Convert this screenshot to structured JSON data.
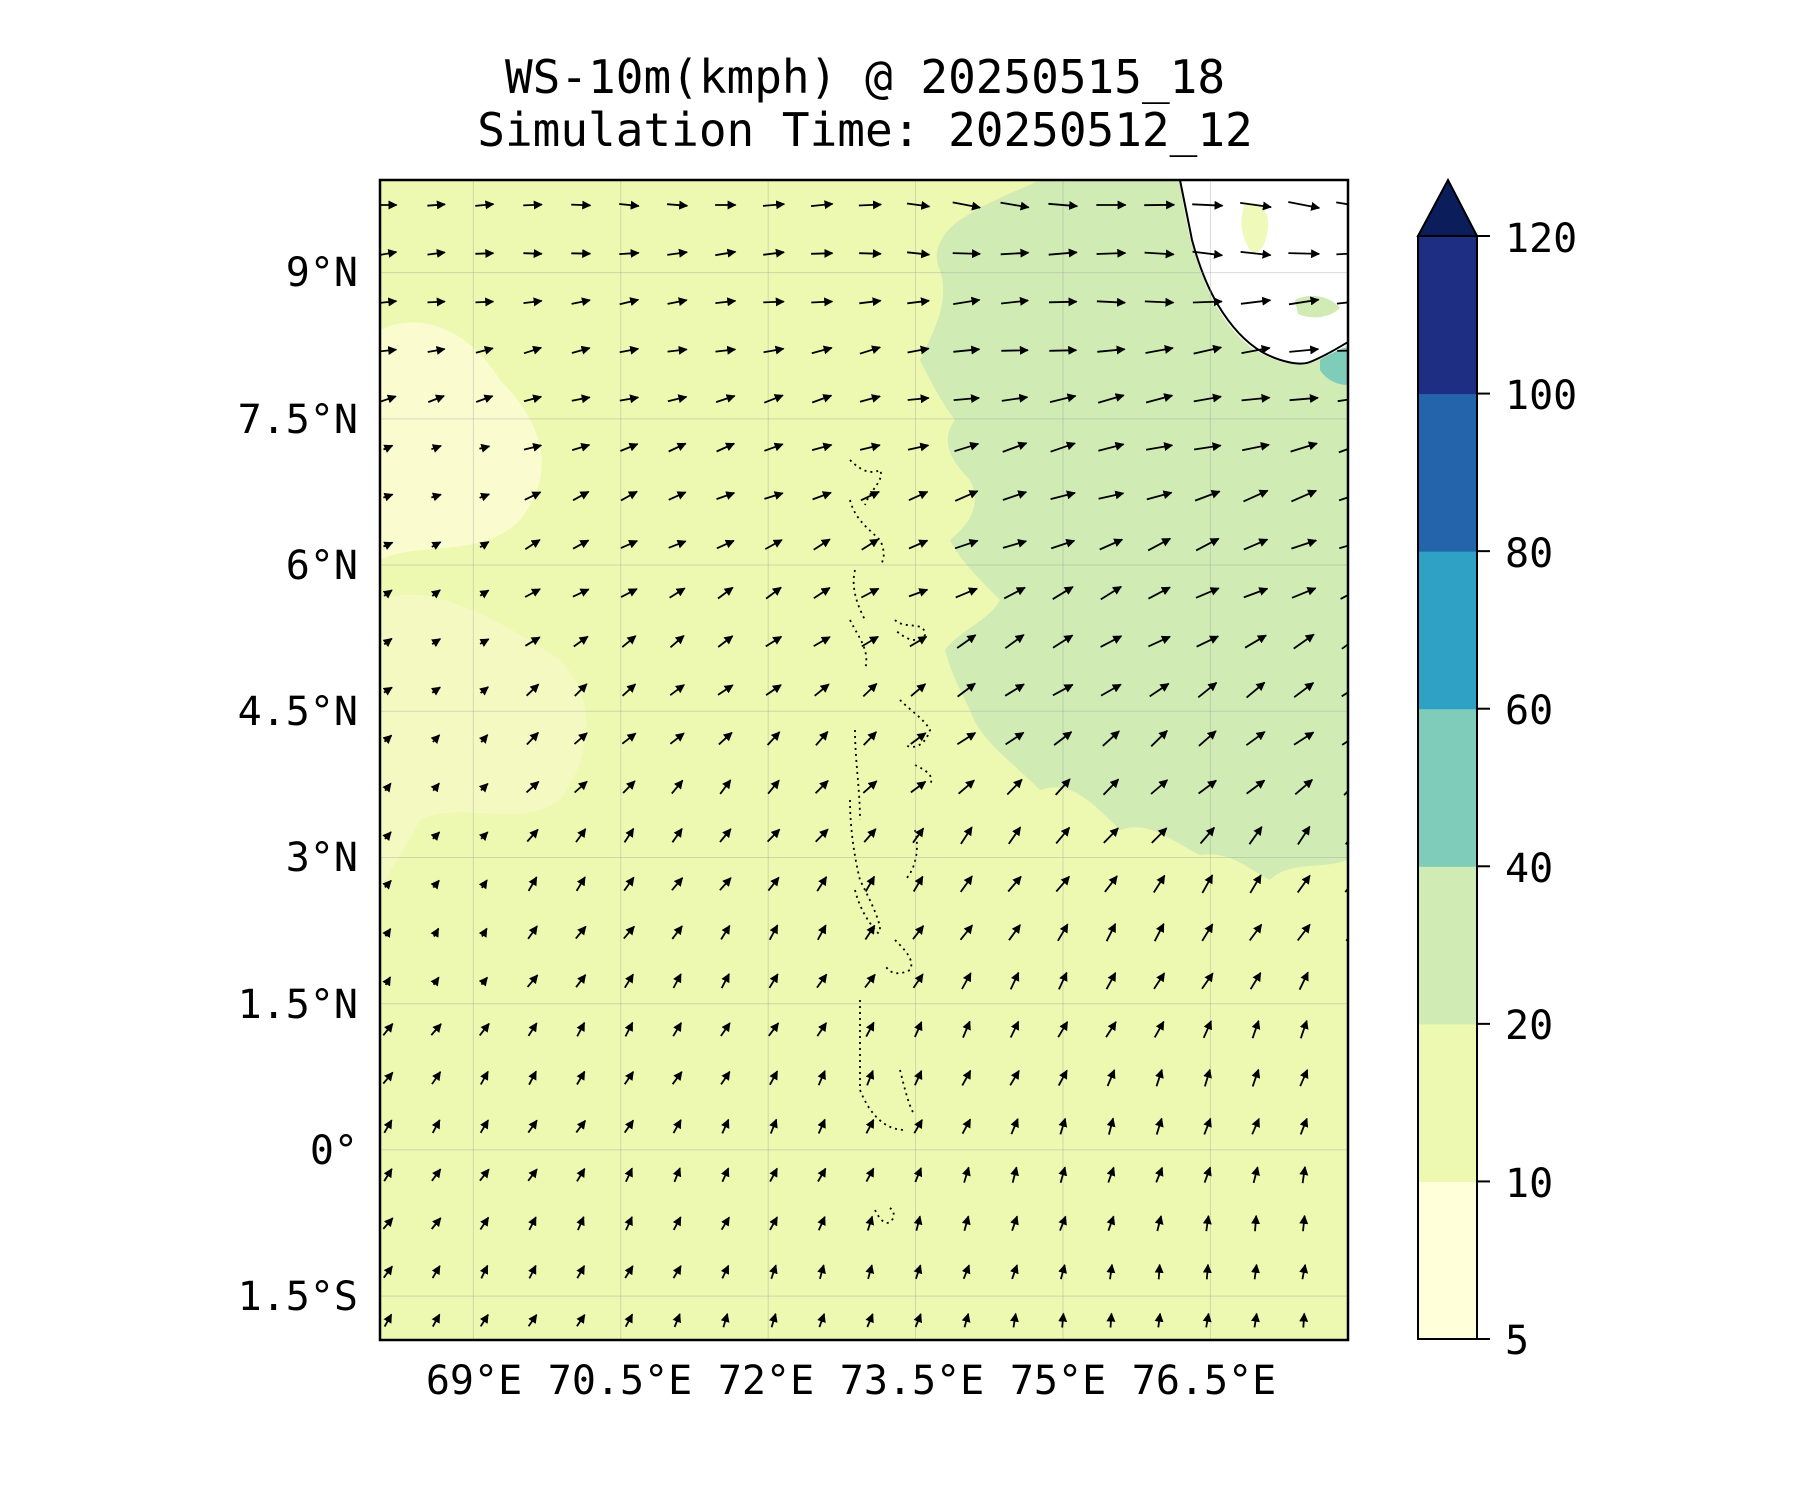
{
  "title": {
    "line1": "WS-10m(kmph) @ 20250515_18",
    "line2": "Simulation Time: 20250512_12"
  },
  "map": {
    "lat_ticks": [
      "9°N",
      "7.5°N",
      "6°N",
      "4.5°N",
      "3°N",
      "1.5°N",
      "0°",
      "1.5°S"
    ],
    "lon_ticks": [
      "69°E",
      "70.5°E",
      "72°E",
      "73.5°E",
      "75°E",
      "76.5°E"
    ],
    "extent": {
      "lon": [
        68.05,
        77.9
      ],
      "lat": [
        -1.95,
        9.95
      ]
    },
    "gridlines": true,
    "features": [
      "india-coastline",
      "sri-lanka-coastline",
      "maldives-atolls"
    ],
    "wind_vectors": "southerly in south veering to westerly / west-southwesterly in north",
    "fill_levels": {
      "west_and_south": "10-20",
      "northeast_sector": "20-40",
      "far_west_patches": "5-10",
      "near_sri_lanka": "40-60"
    }
  },
  "colorbar": {
    "ticks": [
      "120",
      "100",
      "80",
      "60",
      "40",
      "20",
      "10",
      "5"
    ],
    "levels": [
      5,
      10,
      20,
      40,
      60,
      80,
      100,
      120
    ],
    "colors": [
      "#ffffd9",
      "#edf8b1",
      "#d0ebb3",
      "#7fccba",
      "#2ea1c5",
      "#2364ab",
      "#1e2e82",
      "#0b1e5b"
    ],
    "extend": "max"
  }
}
